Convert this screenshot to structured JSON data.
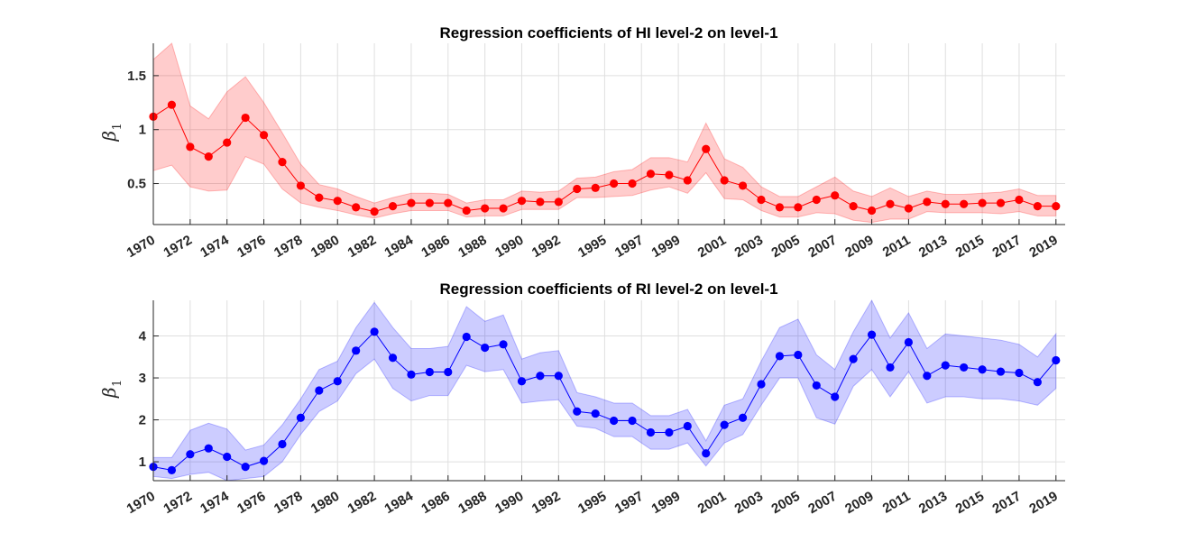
{
  "chart_data": [
    {
      "type": "line",
      "title": "Regression coefficients of HI level-2 on level-1",
      "ylabel_symbol": "β",
      "ylabel_subscript": "1",
      "x": [
        1970,
        1971,
        1972,
        1973,
        1974,
        1975,
        1976,
        1977,
        1978,
        1979,
        1980,
        1981,
        1982,
        1983,
        1984,
        1985,
        1986,
        1987,
        1988,
        1989,
        1990,
        1991,
        1992,
        1993,
        1994,
        1995,
        1996,
        1997,
        1998,
        1999,
        2000,
        2001,
        2002,
        2003,
        2004,
        2005,
        2006,
        2007,
        2008,
        2009,
        2010,
        2011,
        2012,
        2013,
        2014,
        2015,
        2016,
        2017,
        2018,
        2019
      ],
      "x_tick_labels": [
        "1970",
        "1972",
        "1974",
        "1976",
        "1978",
        "1980",
        "1982",
        "1984",
        "1986",
        "1988",
        "1990",
        "1992",
        "1995",
        "1997",
        "1999",
        "2001",
        "2003",
        "2005",
        "2007",
        "2009",
        "2011",
        "2013",
        "2015",
        "2017",
        "2019"
      ],
      "x_tick_values": [
        1970,
        1972,
        1974,
        1976,
        1978,
        1980,
        1982,
        1984,
        1986,
        1988,
        1990,
        1992,
        1994.5,
        1996.5,
        1998.5,
        2001,
        2003,
        2005,
        2007,
        2009,
        2011,
        2013,
        2015,
        2017,
        2019
      ],
      "y_ticks": [
        0.5,
        1,
        1.5
      ],
      "y_tick_labels": [
        "0.5",
        "1",
        "1.5"
      ],
      "ylim": [
        0.12,
        1.8
      ],
      "xlim": [
        1970,
        2019.5
      ],
      "grid": true,
      "color": "#ff0000",
      "band_color": "#ff0000",
      "series": [
        {
          "values": [
            1.12,
            1.23,
            0.84,
            0.75,
            0.88,
            1.11,
            0.95,
            0.7,
            0.48,
            0.37,
            0.34,
            0.28,
            0.24,
            0.29,
            0.32,
            0.32,
            0.32,
            0.25,
            0.27,
            0.27,
            0.34,
            0.33,
            0.33,
            0.45,
            0.46,
            0.5,
            0.5,
            0.59,
            0.58,
            0.53,
            0.82,
            0.53,
            0.48,
            0.35,
            0.28,
            0.28,
            0.35,
            0.39,
            0.29,
            0.25,
            0.31,
            0.27,
            0.33,
            0.31,
            0.31,
            0.32,
            0.32,
            0.35,
            0.29,
            0.29
          ],
          "lower": [
            0.62,
            0.67,
            0.47,
            0.43,
            0.44,
            0.75,
            0.68,
            0.45,
            0.32,
            0.28,
            0.25,
            0.21,
            0.18,
            0.22,
            0.25,
            0.25,
            0.25,
            0.19,
            0.2,
            0.2,
            0.26,
            0.26,
            0.26,
            0.37,
            0.37,
            0.38,
            0.39,
            0.44,
            0.47,
            0.41,
            0.6,
            0.36,
            0.35,
            0.25,
            0.19,
            0.19,
            0.23,
            0.22,
            0.16,
            0.14,
            0.17,
            0.17,
            0.24,
            0.23,
            0.23,
            0.23,
            0.22,
            0.24,
            0.2,
            0.2
          ],
          "upper": [
            1.65,
            1.8,
            1.22,
            1.1,
            1.35,
            1.49,
            1.25,
            0.97,
            0.68,
            0.49,
            0.45,
            0.38,
            0.32,
            0.37,
            0.41,
            0.41,
            0.4,
            0.32,
            0.35,
            0.35,
            0.43,
            0.42,
            0.43,
            0.55,
            0.56,
            0.61,
            0.63,
            0.74,
            0.74,
            0.7,
            1.06,
            0.73,
            0.65,
            0.47,
            0.38,
            0.38,
            0.47,
            0.56,
            0.43,
            0.38,
            0.46,
            0.38,
            0.43,
            0.4,
            0.4,
            0.41,
            0.42,
            0.45,
            0.39,
            0.39
          ]
        }
      ]
    },
    {
      "type": "line",
      "title": "Regression coefficients of RI level-2 on level-1",
      "ylabel_symbol": "β",
      "ylabel_subscript": "1",
      "x": [
        1970,
        1971,
        1972,
        1973,
        1974,
        1975,
        1976,
        1977,
        1978,
        1979,
        1980,
        1981,
        1982,
        1983,
        1984,
        1985,
        1986,
        1987,
        1988,
        1989,
        1990,
        1991,
        1992,
        1993,
        1994,
        1995,
        1996,
        1997,
        1998,
        1999,
        2000,
        2001,
        2002,
        2003,
        2004,
        2005,
        2006,
        2007,
        2008,
        2009,
        2010,
        2011,
        2012,
        2013,
        2014,
        2015,
        2016,
        2017,
        2018,
        2019
      ],
      "x_tick_labels": [
        "1970",
        "1972",
        "1974",
        "1976",
        "1978",
        "1980",
        "1982",
        "1984",
        "1986",
        "1988",
        "1990",
        "1992",
        "1995",
        "1997",
        "1999",
        "2001",
        "2003",
        "2005",
        "2007",
        "2009",
        "2011",
        "2013",
        "2015",
        "2017",
        "2019"
      ],
      "x_tick_values": [
        1970,
        1972,
        1974,
        1976,
        1978,
        1980,
        1982,
        1984,
        1986,
        1988,
        1990,
        1992,
        1994.5,
        1996.5,
        1998.5,
        2001,
        2003,
        2005,
        2007,
        2009,
        2011,
        2013,
        2015,
        2017,
        2019
      ],
      "y_ticks": [
        1,
        2,
        3,
        4
      ],
      "y_tick_labels": [
        "1",
        "2",
        "3",
        "4"
      ],
      "ylim": [
        0.55,
        4.85
      ],
      "xlim": [
        1970,
        2019.5
      ],
      "grid": true,
      "color": "#0000ff",
      "band_color": "#0000ff",
      "series": [
        {
          "values": [
            0.88,
            0.8,
            1.18,
            1.32,
            1.12,
            0.88,
            1.02,
            1.42,
            2.05,
            2.7,
            2.92,
            3.65,
            4.1,
            3.48,
            3.08,
            3.14,
            3.14,
            3.98,
            3.72,
            3.8,
            2.92,
            3.05,
            3.05,
            2.2,
            2.15,
            1.98,
            1.98,
            1.7,
            1.7,
            1.85,
            1.2,
            1.88,
            2.05,
            2.85,
            3.52,
            3.55,
            2.82,
            2.55,
            3.45,
            4.03,
            3.25,
            3.85,
            3.05,
            3.3,
            3.25,
            3.2,
            3.15,
            3.12,
            2.9,
            3.42
          ],
          "lower": [
            0.65,
            0.6,
            0.7,
            0.75,
            0.55,
            0.6,
            0.65,
            1.0,
            1.65,
            2.2,
            2.45,
            3.1,
            3.45,
            2.75,
            2.45,
            2.58,
            2.58,
            3.3,
            3.15,
            3.2,
            2.4,
            2.45,
            2.48,
            1.85,
            1.8,
            1.6,
            1.6,
            1.3,
            1.3,
            1.45,
            0.9,
            1.45,
            1.65,
            2.35,
            3.0,
            3.0,
            2.05,
            1.9,
            2.8,
            3.2,
            2.55,
            3.15,
            2.4,
            2.55,
            2.55,
            2.5,
            2.5,
            2.45,
            2.35,
            2.75
          ],
          "upper": [
            1.1,
            1.1,
            1.75,
            1.92,
            1.78,
            1.28,
            1.4,
            1.88,
            2.5,
            3.2,
            3.4,
            4.2,
            4.8,
            4.2,
            3.7,
            3.7,
            3.75,
            4.7,
            4.35,
            4.5,
            3.45,
            3.6,
            3.65,
            2.65,
            2.55,
            2.4,
            2.4,
            2.1,
            2.1,
            2.25,
            1.5,
            2.35,
            2.5,
            3.4,
            4.2,
            4.4,
            3.55,
            3.2,
            4.1,
            4.85,
            3.95,
            4.55,
            3.7,
            4.05,
            4.0,
            3.95,
            3.9,
            3.8,
            3.5,
            4.05
          ]
        }
      ]
    }
  ]
}
